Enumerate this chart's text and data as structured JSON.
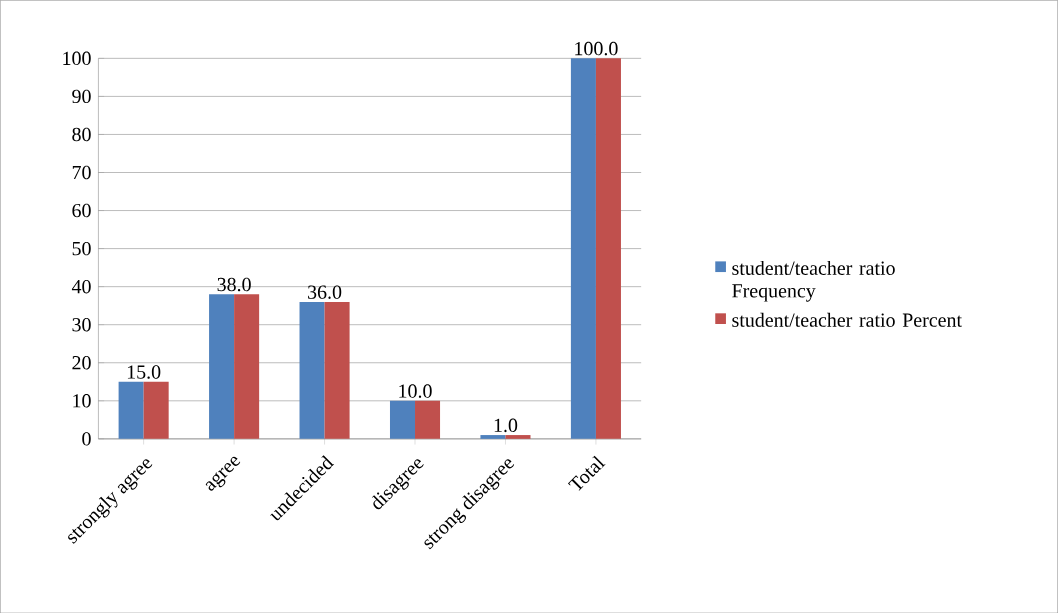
{
  "chart_data": {
    "type": "bar",
    "categories": [
      "strongly agree",
      "agree",
      "undecided",
      "disagree",
      "strong disagree",
      "Total"
    ],
    "series": [
      {
        "name": "student/teacher ratio Frequency",
        "color": "#4f81bd",
        "values": [
          15,
          38,
          36,
          10,
          1,
          100
        ]
      },
      {
        "name": "student/teacher ratio Percent",
        "color": "#c0504d",
        "values": [
          15,
          38,
          36,
          10,
          1,
          100
        ],
        "value_labels": [
          "15.0",
          "38.0",
          "36.0",
          "10.0",
          "1.0",
          "100.0"
        ]
      }
    ],
    "ylim": [
      0,
      100
    ],
    "yticks": [
      0,
      10,
      20,
      30,
      40,
      50,
      60,
      70,
      80,
      90,
      100
    ],
    "grid": "y",
    "legend": "right"
  }
}
